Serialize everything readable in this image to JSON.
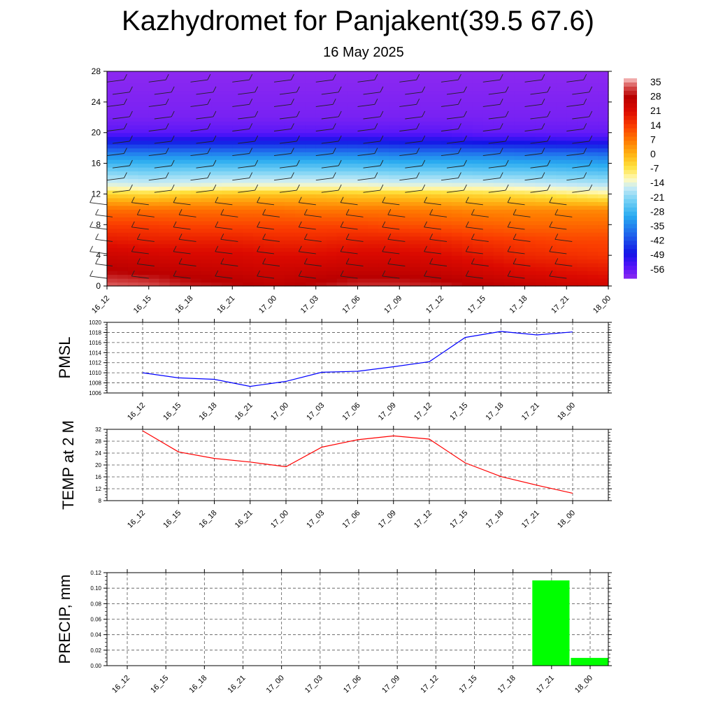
{
  "title": "Kazhydromet for Panjakent(39.5 67.6)",
  "subtitle": "16 May 2025",
  "time_labels": [
    "16_12",
    "16_15",
    "16_18",
    "16_21",
    "17_00",
    "17_03",
    "17_06",
    "17_09",
    "17_12",
    "17_15",
    "17_18",
    "17_21",
    "18_00"
  ],
  "chart_data": [
    {
      "type": "heatmap",
      "name": "cross-section",
      "x": [
        "16_12",
        "16_15",
        "16_18",
        "16_21",
        "17_00",
        "17_03",
        "17_06",
        "17_09",
        "17_12",
        "17_15",
        "17_18",
        "17_21",
        "18_00"
      ],
      "y_ticks": [
        0,
        4,
        8,
        12,
        16,
        20,
        24,
        28
      ],
      "ylim": [
        0,
        28
      ],
      "colorbar": {
        "labels": [
          "35",
          "28",
          "21",
          "14",
          "7",
          "0",
          "-7",
          "-14",
          "-21",
          "-28",
          "-35",
          "-42",
          "-49",
          "-56"
        ],
        "range": [
          -60,
          37
        ]
      },
      "level_temperatures": [
        {
          "level": 0,
          "values": [
            34,
            33,
            30,
            29,
            27,
            29,
            31,
            31,
            30,
            28,
            26,
            24,
            23
          ]
        },
        {
          "level": 2,
          "values": [
            28,
            27,
            26,
            25,
            24,
            25,
            26,
            26,
            25,
            23,
            21,
            20,
            19
          ]
        },
        {
          "level": 4,
          "values": [
            24,
            23,
            22,
            22,
            21,
            21,
            22,
            22,
            21,
            19,
            17,
            16,
            15
          ]
        },
        {
          "level": 6,
          "values": [
            19,
            18,
            18,
            18,
            17,
            17,
            18,
            18,
            17,
            15,
            14,
            13,
            13
          ]
        },
        {
          "level": 8,
          "values": [
            14,
            14,
            13,
            13,
            13,
            13,
            13,
            12,
            11,
            10,
            9,
            9,
            9
          ]
        },
        {
          "level": 10,
          "values": [
            8,
            8,
            8,
            8,
            8,
            7,
            7,
            7,
            6,
            5,
            5,
            5,
            5
          ]
        },
        {
          "level": 12,
          "values": [
            -4,
            -5,
            -3,
            -2,
            -2,
            -2,
            -3,
            -3,
            -4,
            -5,
            -6,
            -8,
            -10
          ]
        },
        {
          "level": 13,
          "values": [
            -13,
            -14,
            -13,
            -12,
            -12,
            -12,
            -12,
            -13,
            -13,
            -13,
            -14,
            -15,
            -16
          ]
        },
        {
          "level": 15,
          "values": [
            -22,
            -23,
            -22,
            -22,
            -22,
            -22,
            -22,
            -23,
            -23,
            -24,
            -24,
            -25,
            -26
          ]
        },
        {
          "level": 17,
          "values": [
            -33,
            -33,
            -33,
            -33,
            -33,
            -33,
            -33,
            -34,
            -34,
            -34,
            -35,
            -35,
            -36
          ]
        },
        {
          "level": 19,
          "values": [
            -48,
            -48,
            -48,
            -48,
            -48,
            -48,
            -48,
            -49,
            -49,
            -50,
            -50,
            -51,
            -51
          ]
        },
        {
          "level": 20,
          "values": [
            -55,
            -55,
            -55,
            -55,
            -55,
            -55,
            -55,
            -55,
            -55,
            -56,
            -56,
            -56,
            -56
          ]
        },
        {
          "level": 22,
          "values": [
            -58,
            -58,
            -58,
            -58,
            -58,
            -58,
            -58,
            -58,
            -58,
            -58,
            -58,
            -58,
            -58
          ]
        },
        {
          "level": 28,
          "values": [
            -60,
            -60,
            -60,
            -60,
            -60,
            -60,
            -60,
            -60,
            -60,
            -60,
            -60,
            -60,
            -60
          ]
        }
      ]
    },
    {
      "type": "line",
      "name": "pmsl",
      "ylabel": "PMSL",
      "x": [
        "16_12",
        "16_15",
        "16_18",
        "16_21",
        "17_00",
        "17_03",
        "17_06",
        "17_09",
        "17_12",
        "17_15",
        "17_18",
        "17_21",
        "18_00"
      ],
      "values": [
        1010.0,
        1009.0,
        1008.7,
        1007.3,
        1008.3,
        1010.1,
        1010.3,
        1011.2,
        1012.2,
        1017.0,
        1018.2,
        1017.5,
        1018.1
      ],
      "ylim": [
        1006,
        1020
      ],
      "y_ticks": [
        1006,
        1008,
        1010,
        1012,
        1014,
        1016,
        1018,
        1020
      ],
      "color": "#0000ff",
      "grid": true
    },
    {
      "type": "line",
      "name": "temp",
      "ylabel": "TEMP at 2 M",
      "x": [
        "16_12",
        "16_15",
        "16_18",
        "16_21",
        "17_00",
        "17_03",
        "17_06",
        "17_09",
        "17_12",
        "17_15",
        "17_18",
        "17_21",
        "18_00"
      ],
      "values": [
        31.5,
        24.4,
        22.2,
        21.0,
        19.4,
        26.0,
        28.5,
        29.8,
        28.7,
        20.7,
        16.1,
        13.2,
        10.5
      ],
      "ylim": [
        8,
        32
      ],
      "y_ticks": [
        8,
        12,
        16,
        20,
        24,
        28,
        32
      ],
      "color": "#ff0000",
      "grid": true
    },
    {
      "type": "bar",
      "name": "precip",
      "ylabel": "PRECIP, mm",
      "x": [
        "16_12",
        "16_15",
        "16_18",
        "16_21",
        "17_00",
        "17_03",
        "17_06",
        "17_09",
        "17_12",
        "17_15",
        "17_18",
        "17_21",
        "18_00"
      ],
      "values": [
        0,
        0,
        0,
        0,
        0,
        0,
        0,
        0,
        0,
        0,
        0,
        0.11,
        0.01
      ],
      "ylim": [
        0,
        0.12
      ],
      "y_ticks": [
        "0.00",
        "0.02",
        "0.04",
        "0.06",
        "0.08",
        "0.10",
        "0.12"
      ],
      "color": "#00ff00",
      "grid": true
    }
  ]
}
